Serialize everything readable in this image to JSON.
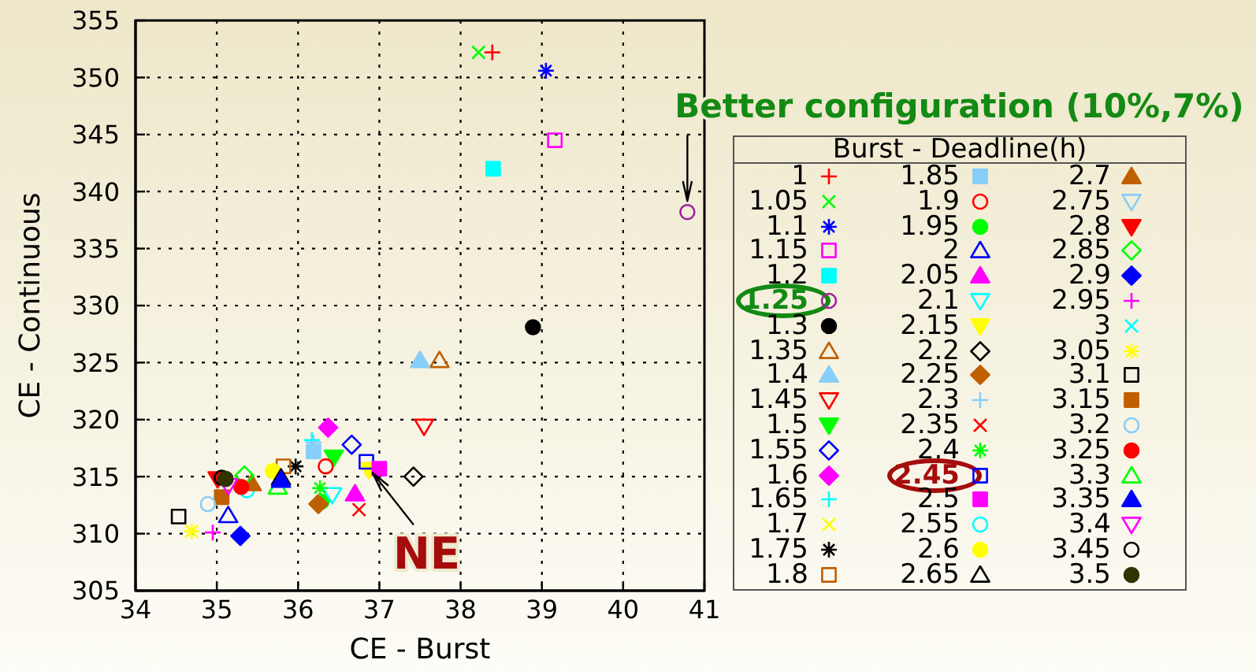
{
  "chart_data": {
    "type": "scatter",
    "xlabel": "CE - Burst",
    "ylabel": "CE - Continuous",
    "legend_title": "Burst - Deadline(h)",
    "legend": "right",
    "grid": true,
    "xlim": [
      34,
      41
    ],
    "xticks": [
      34,
      35,
      36,
      37,
      38,
      39,
      40,
      41
    ],
    "ylim": [
      305,
      355
    ],
    "yticks": [
      305,
      310,
      315,
      320,
      325,
      330,
      335,
      340,
      345,
      350,
      355
    ],
    "annotations": [
      {
        "text": "Better configuration (10%,7%)",
        "x": 40.79,
        "y": 338.2
      },
      {
        "text": "NE",
        "x": 36.84,
        "y": 316.3
      }
    ],
    "series": [
      {
        "name": "1",
        "color": "#ff0000",
        "marker": "plus",
        "x": [
          38.39
        ],
        "values": [
          352.2
        ]
      },
      {
        "name": "1.05",
        "color": "#00ff00",
        "marker": "x",
        "x": [
          38.22
        ],
        "values": [
          352.2
        ]
      },
      {
        "name": "1.1",
        "color": "#0000ff",
        "marker": "cross",
        "x": [
          39.05
        ],
        "values": [
          350.6
        ]
      },
      {
        "name": "1.15",
        "color": "#ff00ff",
        "marker": "square-open",
        "x": [
          39.16
        ],
        "values": [
          344.5
        ]
      },
      {
        "name": "1.2",
        "color": "#00ffff",
        "marker": "square",
        "x": [
          38.4
        ],
        "values": [
          342.0
        ]
      },
      {
        "name": "1.25",
        "color": "#a020a0",
        "marker": "circle-open",
        "x": [
          40.79
        ],
        "values": [
          338.2
        ]
      },
      {
        "name": "1.3",
        "color": "#000000",
        "marker": "circle",
        "x": [
          38.89
        ],
        "values": [
          328.1
        ]
      },
      {
        "name": "1.35",
        "color": "#c05f00",
        "marker": "triangle-open",
        "x": [
          37.74
        ],
        "values": [
          325.2
        ]
      },
      {
        "name": "1.4",
        "color": "#87cefa",
        "marker": "triangle",
        "x": [
          37.5
        ],
        "values": [
          325.2
        ]
      },
      {
        "name": "1.45",
        "color": "#ff0000",
        "marker": "triangle-down-open",
        "x": [
          37.55
        ],
        "values": [
          319.4
        ]
      },
      {
        "name": "1.5",
        "color": "#00ff00",
        "marker": "triangle-down",
        "x": [
          36.44
        ],
        "values": [
          316.7
        ]
      },
      {
        "name": "1.55",
        "color": "#0000ff",
        "marker": "diamond-open",
        "x": [
          36.66
        ],
        "values": [
          317.8
        ]
      },
      {
        "name": "1.6",
        "color": "#ff00ff",
        "marker": "diamond",
        "x": [
          36.37
        ],
        "values": [
          319.3
        ]
      },
      {
        "name": "1.65",
        "color": "#00ffff",
        "marker": "plus",
        "x": [
          36.17
        ],
        "values": [
          318.2
        ]
      },
      {
        "name": "1.7",
        "color": "#ffff00",
        "marker": "x",
        "x": [
          34.69
        ],
        "values": [
          310.2
        ]
      },
      {
        "name": "1.75",
        "color": "#000000",
        "marker": "cross",
        "x": [
          35.97
        ],
        "values": [
          315.9
        ]
      },
      {
        "name": "1.8",
        "color": "#c05f00",
        "marker": "square-open",
        "x": [
          35.82
        ],
        "values": [
          315.9
        ]
      },
      {
        "name": "1.85",
        "color": "#87cefa",
        "marker": "square",
        "x": [
          36.19
        ],
        "values": [
          317.2
        ]
      },
      {
        "name": "1.9",
        "color": "#ff0000",
        "marker": "circle-open",
        "x": [
          36.34
        ],
        "values": [
          315.9
        ]
      },
      {
        "name": "1.95",
        "color": "#00ff00",
        "marker": "circle",
        "x": [
          36.29
        ],
        "values": [
          312.8
        ]
      },
      {
        "name": "2",
        "color": "#0000ff",
        "marker": "triangle-open",
        "x": [
          35.14
        ],
        "values": [
          311.6
        ]
      },
      {
        "name": "2.05",
        "color": "#ff00ff",
        "marker": "triangle",
        "x": [
          36.7
        ],
        "values": [
          313.5
        ]
      },
      {
        "name": "2.1",
        "color": "#00ffff",
        "marker": "triangle-down-open",
        "x": [
          36.42
        ],
        "values": [
          313.4
        ]
      },
      {
        "name": "2.15",
        "color": "#ffff00",
        "marker": "triangle-down",
        "x": [
          36.87
        ],
        "values": [
          315.6
        ]
      },
      {
        "name": "2.2",
        "color": "#000000",
        "marker": "diamond-open",
        "x": [
          37.42
        ],
        "values": [
          315.0
        ]
      },
      {
        "name": "2.25",
        "color": "#c05f00",
        "marker": "diamond",
        "x": [
          36.25
        ],
        "values": [
          312.6
        ]
      },
      {
        "name": "2.3",
        "color": "#87cefa",
        "marker": "plus",
        "x": [
          36.19
        ],
        "values": [
          318.0
        ]
      },
      {
        "name": "2.35",
        "color": "#ff0000",
        "marker": "x",
        "x": [
          36.75
        ],
        "values": [
          312.1
        ]
      },
      {
        "name": "2.4",
        "color": "#00ff00",
        "marker": "cross",
        "x": [
          36.27
        ],
        "values": [
          314.0
        ]
      },
      {
        "name": "2.45",
        "color": "#0000ff",
        "marker": "square-open",
        "x": [
          36.84
        ],
        "values": [
          316.3
        ]
      },
      {
        "name": "2.5",
        "color": "#ff00ff",
        "marker": "square",
        "x": [
          37.0
        ],
        "values": [
          315.7
        ]
      },
      {
        "name": "2.55",
        "color": "#00ffff",
        "marker": "circle-open",
        "x": [
          35.37
        ],
        "values": [
          313.8
        ]
      },
      {
        "name": "2.6",
        "color": "#ffff00",
        "marker": "circle",
        "x": [
          35.69
        ],
        "values": [
          315.5
        ]
      },
      {
        "name": "2.65",
        "color": "#000000",
        "marker": "triangle-open",
        "x": [
          35.79
        ],
        "values": [
          314.9
        ]
      },
      {
        "name": "2.7",
        "color": "#c05f00",
        "marker": "triangle",
        "x": [
          35.43
        ],
        "values": [
          314.4
        ]
      },
      {
        "name": "2.75",
        "color": "#87cefa",
        "marker": "triangle-down-open",
        "x": [
          null
        ],
        "values": [
          null
        ]
      },
      {
        "name": "2.8",
        "color": "#ff0000",
        "marker": "triangle-down",
        "x": [
          35.01
        ],
        "values": [
          314.8
        ]
      },
      {
        "name": "2.85",
        "color": "#00ff00",
        "marker": "diamond-open",
        "x": [
          35.34
        ],
        "values": [
          315.1
        ]
      },
      {
        "name": "2.9",
        "color": "#0000ff",
        "marker": "diamond",
        "x": [
          35.29
        ],
        "values": [
          309.8
        ]
      },
      {
        "name": "2.95",
        "color": "#ff00ff",
        "marker": "plus",
        "x": [
          34.95
        ],
        "values": [
          310.1
        ]
      },
      {
        "name": "3",
        "color": "#00ffff",
        "marker": "x",
        "x": [
          null
        ],
        "values": [
          null
        ]
      },
      {
        "name": "3.05",
        "color": "#ffff00",
        "marker": "cross",
        "x": [
          34.69
        ],
        "values": [
          310.2
        ]
      },
      {
        "name": "3.1",
        "color": "#000000",
        "marker": "square-open",
        "x": [
          34.53
        ],
        "values": [
          311.5
        ]
      },
      {
        "name": "3.15",
        "color": "#c05f00",
        "marker": "square",
        "x": [
          35.06
        ],
        "values": [
          313.2
        ]
      },
      {
        "name": "3.2",
        "color": "#87cefa",
        "marker": "circle-open",
        "x": [
          34.89
        ],
        "values": [
          312.6
        ]
      },
      {
        "name": "3.25",
        "color": "#ff0000",
        "marker": "circle",
        "x": [
          35.3
        ],
        "values": [
          314.1
        ]
      },
      {
        "name": "3.3",
        "color": "#00ff00",
        "marker": "triangle-open",
        "x": [
          35.75
        ],
        "values": [
          314.1
        ]
      },
      {
        "name": "3.35",
        "color": "#0000ff",
        "marker": "triangle",
        "x": [
          35.79
        ],
        "values": [
          314.7
        ]
      },
      {
        "name": "3.4",
        "color": "#ff00ff",
        "marker": "triangle-down-open",
        "x": [
          35.14
        ],
        "values": [
          314.2
        ]
      },
      {
        "name": "3.45",
        "color": "#000000",
        "marker": "circle-open",
        "x": [
          35.06
        ],
        "values": [
          314.9
        ]
      },
      {
        "name": "3.5",
        "color": "#333300",
        "marker": "circle",
        "x": [
          35.11
        ],
        "values": [
          314.8
        ]
      }
    ]
  }
}
